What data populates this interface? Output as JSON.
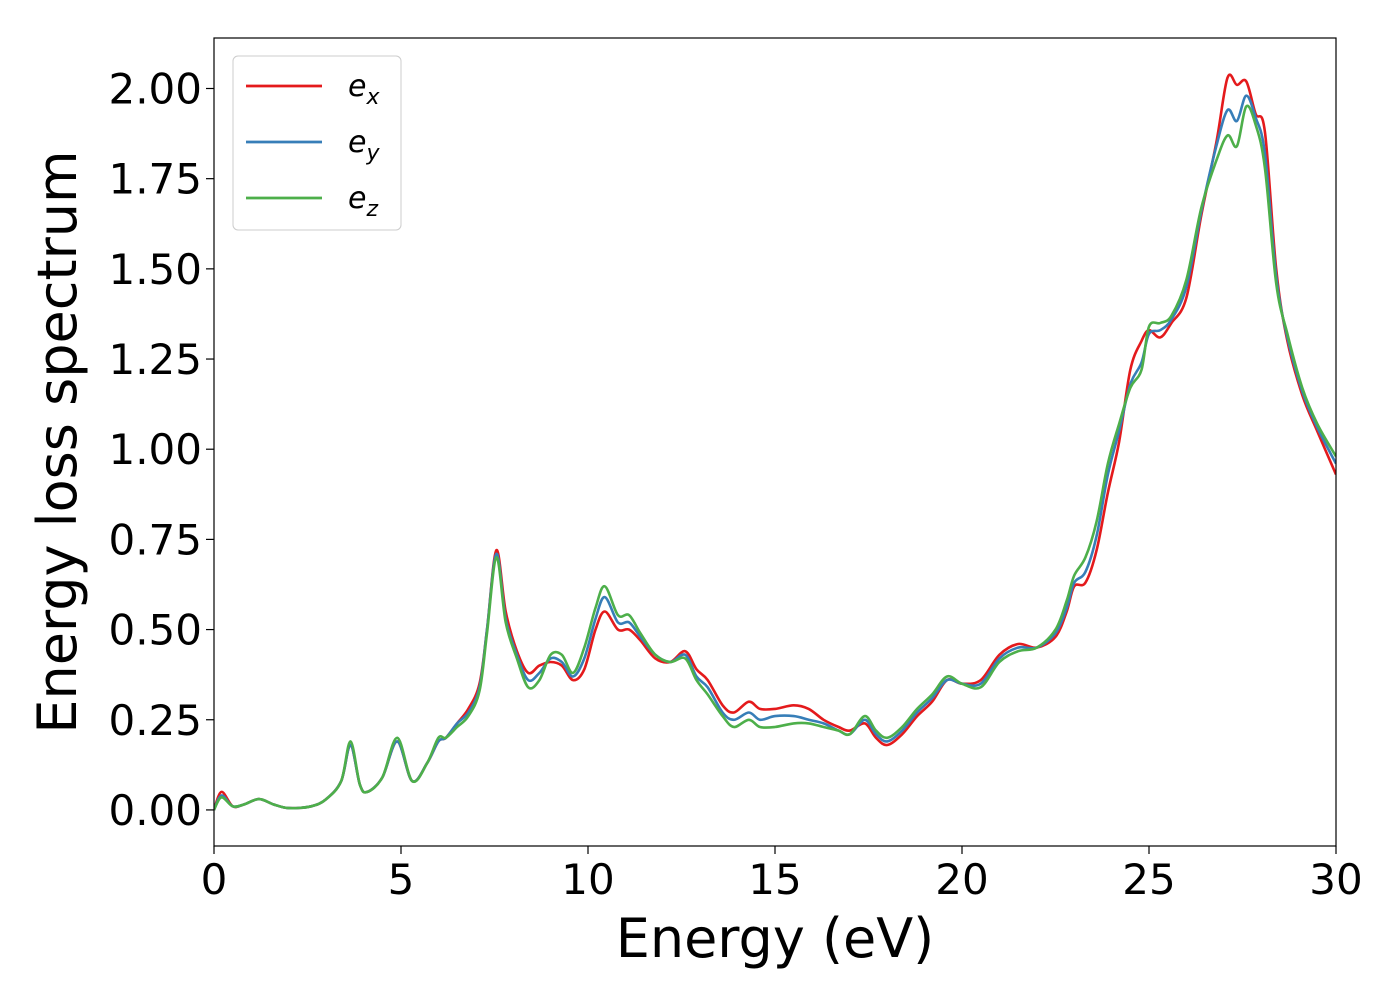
{
  "chart_data": {
    "type": "line",
    "xlabel": "Energy (eV)",
    "ylabel": "Energy loss spectrum",
    "xlim": [
      0,
      30
    ],
    "ylim": [
      -0.1,
      2.14
    ],
    "xticks": [
      0,
      5,
      10,
      15,
      20,
      25,
      30
    ],
    "xtick_labels": [
      "0",
      "5",
      "10",
      "15",
      "20",
      "25",
      "30"
    ],
    "yticks": [
      0,
      0.25,
      0.5,
      0.75,
      1.0,
      1.25,
      1.5,
      1.75,
      2.0
    ],
    "ytick_labels": [
      "0.00",
      "0.25",
      "0.50",
      "0.75",
      "1.00",
      "1.25",
      "1.50",
      "1.75",
      "2.00"
    ],
    "grid": false,
    "legend_position": "top-left",
    "series": [
      {
        "name": "e",
        "sub": "x",
        "color": "#e41a1c",
        "points": [
          [
            0,
            0
          ],
          [
            0.2,
            0.05
          ],
          [
            0.5,
            0.01
          ],
          [
            0.8,
            0.015
          ],
          [
            1.2,
            0.03
          ],
          [
            1.6,
            0.015
          ],
          [
            2.0,
            0.005
          ],
          [
            2.6,
            0.01
          ],
          [
            3.0,
            0.03
          ],
          [
            3.4,
            0.08
          ],
          [
            3.65,
            0.18
          ],
          [
            3.9,
            0.07
          ],
          [
            4.1,
            0.05
          ],
          [
            4.5,
            0.09
          ],
          [
            4.9,
            0.19
          ],
          [
            5.3,
            0.08
          ],
          [
            5.7,
            0.13
          ],
          [
            6.0,
            0.19
          ],
          [
            6.2,
            0.2
          ],
          [
            6.5,
            0.24
          ],
          [
            6.8,
            0.28
          ],
          [
            7.1,
            0.35
          ],
          [
            7.3,
            0.5
          ],
          [
            7.55,
            0.72
          ],
          [
            7.8,
            0.55
          ],
          [
            8.1,
            0.44
          ],
          [
            8.4,
            0.38
          ],
          [
            8.7,
            0.4
          ],
          [
            9.0,
            0.41
          ],
          [
            9.3,
            0.4
          ],
          [
            9.6,
            0.36
          ],
          [
            9.9,
            0.39
          ],
          [
            10.2,
            0.5
          ],
          [
            10.45,
            0.55
          ],
          [
            10.8,
            0.5
          ],
          [
            11.1,
            0.5
          ],
          [
            11.4,
            0.47
          ],
          [
            11.8,
            0.42
          ],
          [
            12.2,
            0.41
          ],
          [
            12.6,
            0.44
          ],
          [
            12.9,
            0.39
          ],
          [
            13.2,
            0.36
          ],
          [
            13.6,
            0.29
          ],
          [
            13.9,
            0.27
          ],
          [
            14.3,
            0.3
          ],
          [
            14.6,
            0.28
          ],
          [
            15.0,
            0.28
          ],
          [
            15.5,
            0.29
          ],
          [
            15.9,
            0.28
          ],
          [
            16.3,
            0.25
          ],
          [
            16.7,
            0.23
          ],
          [
            17.0,
            0.22
          ],
          [
            17.4,
            0.24
          ],
          [
            17.7,
            0.2
          ],
          [
            18.0,
            0.18
          ],
          [
            18.4,
            0.21
          ],
          [
            18.8,
            0.26
          ],
          [
            19.2,
            0.3
          ],
          [
            19.6,
            0.36
          ],
          [
            20.0,
            0.35
          ],
          [
            20.5,
            0.36
          ],
          [
            21.0,
            0.43
          ],
          [
            21.5,
            0.46
          ],
          [
            22.0,
            0.45
          ],
          [
            22.5,
            0.48
          ],
          [
            22.8,
            0.55
          ],
          [
            23.0,
            0.62
          ],
          [
            23.3,
            0.63
          ],
          [
            23.6,
            0.72
          ],
          [
            23.9,
            0.88
          ],
          [
            24.2,
            1.02
          ],
          [
            24.5,
            1.22
          ],
          [
            24.8,
            1.3
          ],
          [
            25.0,
            1.33
          ],
          [
            25.3,
            1.31
          ],
          [
            25.6,
            1.35
          ],
          [
            26.0,
            1.42
          ],
          [
            26.4,
            1.65
          ],
          [
            26.8,
            1.85
          ],
          [
            27.1,
            2.03
          ],
          [
            27.35,
            2.01
          ],
          [
            27.6,
            2.02
          ],
          [
            27.85,
            1.93
          ],
          [
            28.1,
            1.88
          ],
          [
            28.4,
            1.5
          ],
          [
            28.7,
            1.3
          ],
          [
            29.1,
            1.15
          ],
          [
            29.5,
            1.05
          ],
          [
            30,
            0.93
          ]
        ]
      },
      {
        "name": "e",
        "sub": "y",
        "color": "#377eb8",
        "points": [
          [
            0,
            0
          ],
          [
            0.2,
            0.04
          ],
          [
            0.5,
            0.01
          ],
          [
            0.8,
            0.015
          ],
          [
            1.2,
            0.03
          ],
          [
            1.6,
            0.015
          ],
          [
            2.0,
            0.005
          ],
          [
            2.6,
            0.01
          ],
          [
            3.0,
            0.03
          ],
          [
            3.4,
            0.08
          ],
          [
            3.65,
            0.18
          ],
          [
            3.9,
            0.07
          ],
          [
            4.1,
            0.05
          ],
          [
            4.5,
            0.09
          ],
          [
            4.9,
            0.19
          ],
          [
            5.3,
            0.08
          ],
          [
            5.7,
            0.13
          ],
          [
            6.0,
            0.19
          ],
          [
            6.2,
            0.2
          ],
          [
            6.5,
            0.24
          ],
          [
            6.8,
            0.27
          ],
          [
            7.1,
            0.34
          ],
          [
            7.3,
            0.5
          ],
          [
            7.55,
            0.71
          ],
          [
            7.8,
            0.53
          ],
          [
            8.1,
            0.43
          ],
          [
            8.4,
            0.36
          ],
          [
            8.7,
            0.38
          ],
          [
            9.0,
            0.42
          ],
          [
            9.3,
            0.41
          ],
          [
            9.6,
            0.37
          ],
          [
            9.9,
            0.42
          ],
          [
            10.2,
            0.53
          ],
          [
            10.45,
            0.59
          ],
          [
            10.8,
            0.52
          ],
          [
            11.1,
            0.52
          ],
          [
            11.4,
            0.48
          ],
          [
            11.8,
            0.43
          ],
          [
            12.2,
            0.41
          ],
          [
            12.6,
            0.43
          ],
          [
            12.9,
            0.37
          ],
          [
            13.2,
            0.34
          ],
          [
            13.6,
            0.27
          ],
          [
            13.9,
            0.25
          ],
          [
            14.3,
            0.27
          ],
          [
            14.6,
            0.25
          ],
          [
            15.0,
            0.26
          ],
          [
            15.5,
            0.26
          ],
          [
            15.9,
            0.25
          ],
          [
            16.3,
            0.24
          ],
          [
            16.7,
            0.22
          ],
          [
            17.0,
            0.21
          ],
          [
            17.4,
            0.25
          ],
          [
            17.7,
            0.21
          ],
          [
            18.0,
            0.19
          ],
          [
            18.4,
            0.22
          ],
          [
            18.8,
            0.27
          ],
          [
            19.2,
            0.31
          ],
          [
            19.6,
            0.36
          ],
          [
            20.0,
            0.35
          ],
          [
            20.5,
            0.35
          ],
          [
            21.0,
            0.42
          ],
          [
            21.5,
            0.45
          ],
          [
            22.0,
            0.45
          ],
          [
            22.5,
            0.49
          ],
          [
            22.8,
            0.56
          ],
          [
            23.0,
            0.63
          ],
          [
            23.3,
            0.66
          ],
          [
            23.6,
            0.76
          ],
          [
            23.9,
            0.93
          ],
          [
            24.2,
            1.05
          ],
          [
            24.5,
            1.18
          ],
          [
            24.8,
            1.24
          ],
          [
            25.0,
            1.32
          ],
          [
            25.3,
            1.33
          ],
          [
            25.6,
            1.36
          ],
          [
            26.0,
            1.45
          ],
          [
            26.4,
            1.66
          ],
          [
            26.8,
            1.84
          ],
          [
            27.1,
            1.94
          ],
          [
            27.35,
            1.91
          ],
          [
            27.6,
            1.98
          ],
          [
            27.85,
            1.92
          ],
          [
            28.1,
            1.82
          ],
          [
            28.4,
            1.48
          ],
          [
            28.7,
            1.31
          ],
          [
            29.1,
            1.16
          ],
          [
            29.5,
            1.06
          ],
          [
            30,
            0.96
          ]
        ]
      },
      {
        "name": "e",
        "sub": "z",
        "color": "#4daf4a",
        "points": [
          [
            0,
            0
          ],
          [
            0.2,
            0.035
          ],
          [
            0.5,
            0.01
          ],
          [
            0.8,
            0.015
          ],
          [
            1.2,
            0.03
          ],
          [
            1.6,
            0.015
          ],
          [
            2.0,
            0.005
          ],
          [
            2.6,
            0.01
          ],
          [
            3.0,
            0.03
          ],
          [
            3.4,
            0.08
          ],
          [
            3.65,
            0.19
          ],
          [
            3.9,
            0.07
          ],
          [
            4.1,
            0.05
          ],
          [
            4.5,
            0.09
          ],
          [
            4.9,
            0.2
          ],
          [
            5.3,
            0.08
          ],
          [
            5.7,
            0.13
          ],
          [
            6.0,
            0.2
          ],
          [
            6.2,
            0.2
          ],
          [
            6.5,
            0.23
          ],
          [
            6.8,
            0.26
          ],
          [
            7.1,
            0.33
          ],
          [
            7.3,
            0.49
          ],
          [
            7.55,
            0.7
          ],
          [
            7.8,
            0.52
          ],
          [
            8.1,
            0.42
          ],
          [
            8.4,
            0.34
          ],
          [
            8.7,
            0.36
          ],
          [
            9.0,
            0.43
          ],
          [
            9.3,
            0.43
          ],
          [
            9.6,
            0.38
          ],
          [
            9.9,
            0.45
          ],
          [
            10.2,
            0.56
          ],
          [
            10.45,
            0.62
          ],
          [
            10.8,
            0.54
          ],
          [
            11.1,
            0.54
          ],
          [
            11.4,
            0.49
          ],
          [
            11.8,
            0.43
          ],
          [
            12.2,
            0.41
          ],
          [
            12.6,
            0.42
          ],
          [
            12.9,
            0.36
          ],
          [
            13.2,
            0.32
          ],
          [
            13.6,
            0.26
          ],
          [
            13.9,
            0.23
          ],
          [
            14.3,
            0.25
          ],
          [
            14.6,
            0.23
          ],
          [
            15.0,
            0.23
          ],
          [
            15.5,
            0.24
          ],
          [
            15.9,
            0.24
          ],
          [
            16.3,
            0.23
          ],
          [
            16.7,
            0.22
          ],
          [
            17.0,
            0.21
          ],
          [
            17.4,
            0.26
          ],
          [
            17.7,
            0.22
          ],
          [
            18.0,
            0.2
          ],
          [
            18.4,
            0.23
          ],
          [
            18.8,
            0.28
          ],
          [
            19.2,
            0.32
          ],
          [
            19.6,
            0.37
          ],
          [
            20.0,
            0.35
          ],
          [
            20.5,
            0.34
          ],
          [
            21.0,
            0.41
          ],
          [
            21.5,
            0.44
          ],
          [
            22.0,
            0.45
          ],
          [
            22.5,
            0.5
          ],
          [
            22.8,
            0.58
          ],
          [
            23.0,
            0.65
          ],
          [
            23.3,
            0.7
          ],
          [
            23.6,
            0.8
          ],
          [
            23.9,
            0.96
          ],
          [
            24.2,
            1.07
          ],
          [
            24.5,
            1.17
          ],
          [
            24.8,
            1.22
          ],
          [
            25.0,
            1.34
          ],
          [
            25.3,
            1.35
          ],
          [
            25.6,
            1.37
          ],
          [
            26.0,
            1.47
          ],
          [
            26.4,
            1.67
          ],
          [
            26.8,
            1.8
          ],
          [
            27.1,
            1.87
          ],
          [
            27.35,
            1.84
          ],
          [
            27.6,
            1.95
          ],
          [
            27.85,
            1.9
          ],
          [
            28.1,
            1.78
          ],
          [
            28.4,
            1.46
          ],
          [
            28.7,
            1.32
          ],
          [
            29.1,
            1.17
          ],
          [
            29.5,
            1.07
          ],
          [
            30,
            0.98
          ]
        ]
      }
    ]
  }
}
